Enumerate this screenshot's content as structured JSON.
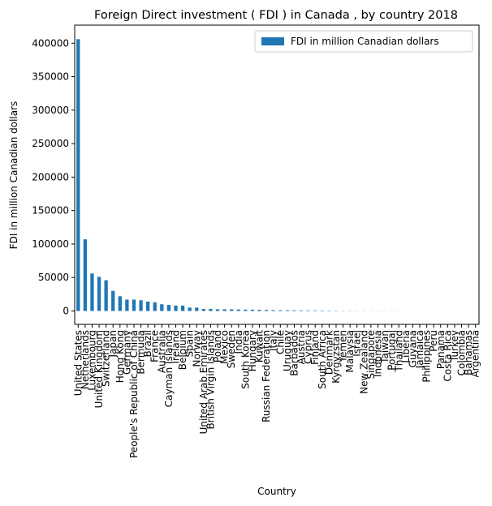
{
  "chart_data": {
    "type": "bar",
    "title": "Foreign Direct investment ( FDI ) in Canada , by country 2018",
    "xlabel": "Country",
    "ylabel": "FDI in million Canadian dollars",
    "legend": "upper right",
    "categories": [
      "United States",
      "Netherlands",
      "Luxembourg",
      "United Kingdom",
      "Switzerland",
      "Japan",
      "Hong Kong",
      "Germany",
      "People's Republic of China",
      "Bermuda",
      "Brazil",
      "France",
      "Australia",
      "Cayman Islands",
      "Ireland",
      "Belgium",
      "Spain",
      "Norway",
      "United Arab Emirates",
      "British Virgin Islands",
      "Poland",
      "Mexico",
      "Sweden",
      "India",
      "South Korea",
      "Hungary",
      "Kuwait",
      "Russian Federation",
      "Italy",
      "Chile",
      "Uruguay",
      "Barbados",
      "Austria",
      "Cyprus",
      "Finland",
      "South Africa",
      "Denmark",
      "Kyrgyzstan",
      "Yemen",
      "Malaysia",
      "Israel",
      "New Zealand",
      "Singapore",
      "Indonesia",
      "Taiwan",
      "Portugal",
      "Thailand",
      "Liberia",
      "Guyana",
      "Jamaica",
      "Philippines",
      "Peru",
      "Panama",
      "Costa Rica",
      "Turkey",
      "Colombia",
      "Bahamas",
      "Argentina"
    ],
    "series": [
      {
        "name": "FDI in million Canadian dollars",
        "color": "#1f77b4",
        "values": [
          406000,
          107000,
          56000,
          51000,
          46000,
          30000,
          22000,
          17000,
          17000,
          16000,
          14000,
          13000,
          10000,
          9000,
          8000,
          8000,
          5000,
          5000,
          3000,
          3000,
          2500,
          2500,
          2400,
          2200,
          2000,
          2000,
          1800,
          1500,
          1300,
          1200,
          1100,
          1000,
          900,
          850,
          800,
          700,
          600,
          500,
          300,
          250,
          200,
          180,
          160,
          150,
          140,
          120,
          100,
          90,
          80,
          70,
          60,
          50,
          40,
          30,
          25,
          20,
          15,
          10
        ]
      }
    ],
    "ylim": [
      -20000,
      427000
    ],
    "yticks": [
      0,
      50000,
      100000,
      150000,
      200000,
      250000,
      300000,
      350000,
      400000
    ]
  }
}
